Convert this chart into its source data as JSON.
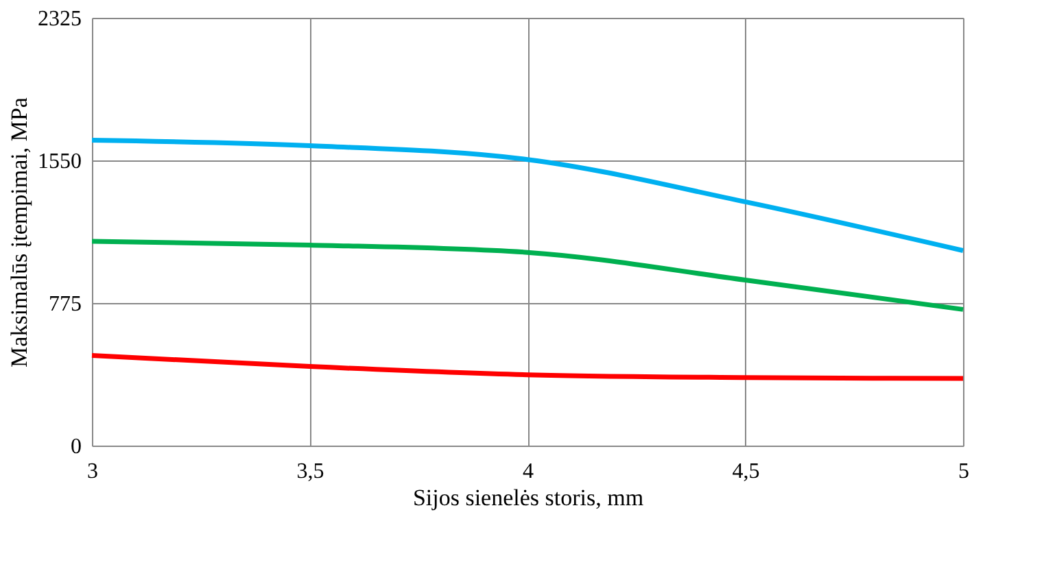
{
  "chart_data": {
    "type": "line",
    "xlabel": "Sijos sienelės storis, mm",
    "ylabel": "Maksimalūs įtempimai, MPa",
    "x": [
      3,
      3.5,
      4,
      4.5,
      5
    ],
    "series": [
      {
        "color": "#00b0f0",
        "values": [
          1660,
          1630,
          1555,
          1325,
          1060
        ]
      },
      {
        "color": "#00b050",
        "values": [
          1110,
          1090,
          1050,
          900,
          740
        ]
      },
      {
        "color": "#ff0000",
        "values": [
          490,
          430,
          385,
          370,
          365
        ]
      }
    ],
    "xlim": [
      3,
      5
    ],
    "xticks": [
      3,
      {
        "value": 3.5,
        "label": "3,5"
      },
      4,
      {
        "value": 4.5,
        "label": "4,5"
      },
      5
    ],
    "ylim": [
      0,
      2325
    ],
    "yticks": [
      0,
      775,
      1550,
      2325
    ],
    "grid": true,
    "legend": false,
    "marker": "none",
    "line_style": "solid"
  }
}
